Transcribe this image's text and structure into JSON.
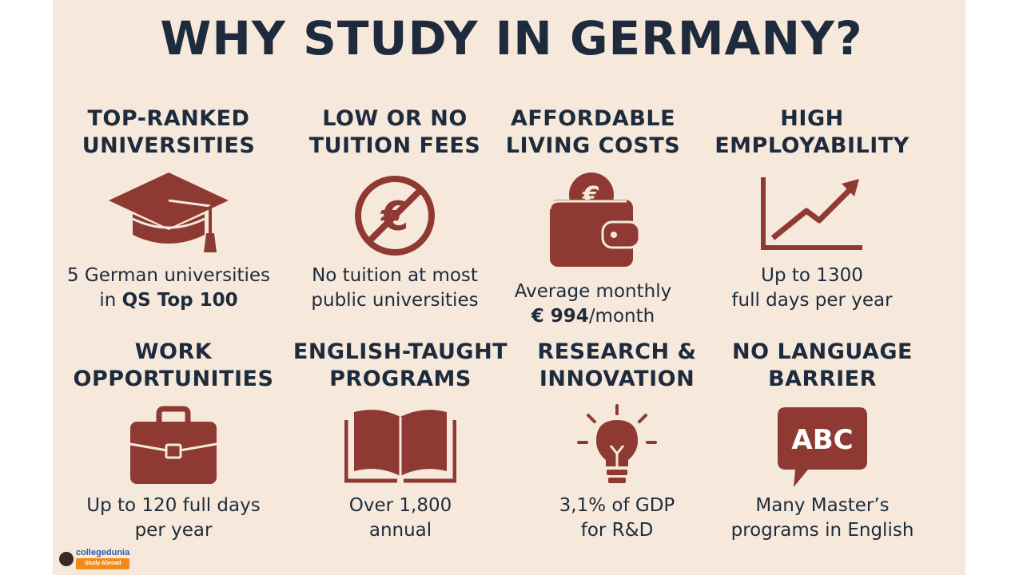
{
  "title": "WHY STUDY IN GERMANY?",
  "colors": {
    "accent": "#8e3a33",
    "text": "#1e2b3d",
    "background": "#f6e9db"
  },
  "cards": [
    {
      "head1": "TOP-RANKED",
      "head2": "UNIVERSITIES",
      "icon": "graduation-cap-icon",
      "desc1_pre": "5 German universities",
      "desc2_pre": "in ",
      "desc2_bold": "QS Top 100"
    },
    {
      "head1": "LOW OR NO",
      "head2": "TUITION FEES",
      "icon": "no-euro-icon",
      "desc1": "No tuition at most",
      "desc2": "public universities"
    },
    {
      "head1": "AFFORDABLE",
      "head2": "LIVING COSTS",
      "icon": "wallet-euro-icon",
      "desc1": "Average monthly",
      "desc2_bold": "€ 994",
      "desc2_post": "/month"
    },
    {
      "head1": "HIGH",
      "head2": "EMPLOYABILITY",
      "icon": "growth-chart-icon",
      "desc1": "Up to 1300",
      "desc2": "full days per year"
    },
    {
      "head1": "WORK",
      "head2": "OPPORTUNITIES",
      "icon": "briefcase-icon",
      "desc1": "Up to 120 full days",
      "desc2": "per year"
    },
    {
      "head1": "ENGLISH-TAUGHT",
      "head2": "PROGRAMS",
      "icon": "book-icon",
      "desc1": "Over 1,800",
      "desc2": "annual"
    },
    {
      "head1": "RESEARCH &",
      "head2": "INNOVATION",
      "icon": "lightbulb-icon",
      "desc1": "3,1% of GDP",
      "desc2": "for R&D"
    },
    {
      "head1": "NO LANGUAGE",
      "head2": "BARRIER",
      "icon": "speech-bubble-abc-icon",
      "icon_text": "ABC",
      "desc1": "Many Master’s",
      "desc2": "programs in English"
    }
  ],
  "logo": {
    "name": "collegedunia",
    "tagline": "Study Abroad"
  }
}
